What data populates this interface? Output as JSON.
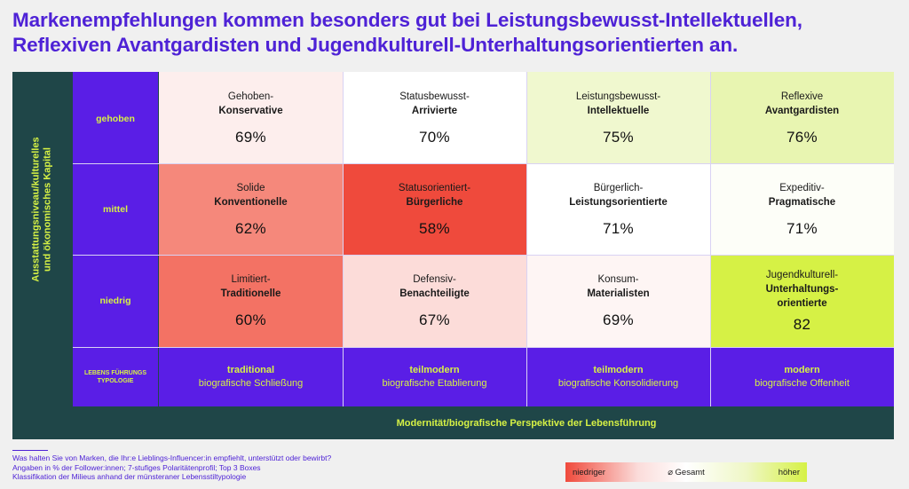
{
  "title": "Markenempfehlungen kommen besonders gut bei Leistungsbewusst-Intellektuellen, Reflexiven Avantgardisten und Jugendkulturell-Unterhaltungsorientierten an.",
  "y_axis_title": "Ausstattungsniveau/kulturelles und ökonomisches Kapital",
  "x_axis_title": "Modernität/biografische Perspektive der Lebensführung",
  "typology_label": "LEBENS FÜHRUNGS TYPOLOGIE",
  "levels": [
    "gehoben",
    "mittel",
    "niedrig"
  ],
  "typologies": [
    {
      "line1": "traditional",
      "line2": "biografische Schließung"
    },
    {
      "line1": "teilmodern",
      "line2": "biografische Etablierung"
    },
    {
      "line1": "teilmodern",
      "line2": "biografische Konsolidierung"
    },
    {
      "line1": "modern",
      "line2": "biografische Offenheit"
    }
  ],
  "chart_data": {
    "type": "heatmap",
    "title": "Markenempfehlungen kommen besonders gut bei Leistungsbewusst-Intellektuellen, Reflexiven Avantgardisten und Jugendkulturell-Unterhaltungsorientierten an.",
    "xlabel": "Modernität/biografische Perspektive der Lebensführung",
    "ylabel": "Ausstattungsniveau/kulturelles und ökonomisches Kapital",
    "rows": [
      "gehoben",
      "mittel",
      "niedrig"
    ],
    "columns": [
      "traditional",
      "teilmodern",
      "teilmodern",
      "modern"
    ],
    "unit": "%",
    "cells": [
      {
        "row": 0,
        "col": 0,
        "line1": "Gehoben-",
        "line2": "Konservative",
        "value_label": "69%",
        "value": 69,
        "color": "#fdeeed"
      },
      {
        "row": 0,
        "col": 1,
        "line1": "Statusbewusst-",
        "line2": "Arrivierte",
        "value_label": "70%",
        "value": 70,
        "color": "#ffffff"
      },
      {
        "row": 0,
        "col": 2,
        "line1": "Leistungsbewusst-",
        "line2": "Intellektuelle",
        "value_label": "75%",
        "value": 75,
        "color": "#f0f8cf"
      },
      {
        "row": 0,
        "col": 3,
        "line1": "Reflexive",
        "line2": "Avantgardisten",
        "value_label": "76%",
        "value": 76,
        "color": "#e8f5b1"
      },
      {
        "row": 1,
        "col": 0,
        "line1": "Solide",
        "line2": "Konventionelle",
        "value_label": "62%",
        "value": 62,
        "color": "#f5887b"
      },
      {
        "row": 1,
        "col": 1,
        "line1": "Statusorientiert-",
        "line2": "Bürgerliche",
        "value_label": "58%",
        "value": 58,
        "color": "#ef4a3c"
      },
      {
        "row": 1,
        "col": 2,
        "line1": "Bürgerlich-",
        "line2": "Leistungsorientierte",
        "value_label": "71%",
        "value": 71,
        "color": "#ffffff"
      },
      {
        "row": 1,
        "col": 3,
        "line1": "Expeditiv-",
        "line2": "Pragmatische",
        "value_label": "71%",
        "value": 71,
        "color": "#fdfef8"
      },
      {
        "row": 2,
        "col": 0,
        "line1": "Limitiert-",
        "line2": "Traditionelle",
        "value_label": "60%",
        "value": 60,
        "color": "#f37264"
      },
      {
        "row": 2,
        "col": 1,
        "line1": "Defensiv-",
        "line2": "Benachteiligte",
        "value_label": "67%",
        "value": 67,
        "color": "#fcdcd9"
      },
      {
        "row": 2,
        "col": 2,
        "line1": "Konsum-",
        "line2": "Materialisten",
        "value_label": "69%",
        "value": 69,
        "color": "#fef5f4"
      },
      {
        "row": 2,
        "col": 3,
        "line1": "Jugendkulturell-",
        "line2": "Unterhaltungs- orientierte",
        "value_label": "82",
        "value": 82,
        "color": "#d6f145"
      }
    ]
  },
  "notes": [
    "Was halten Sie von Marken, die Ihr:e Lieblings-Influencer:in empfiehlt, unterstützt oder bewirbt?",
    "Angaben in % der Follower:innen; 7-stufiges Polaritätenprofil; Top 3 Boxes",
    "Klassifikation der Milieus anhand der münsteraner Lebensstiltypologie"
  ],
  "legend": {
    "low": "niedriger",
    "mid": "⌀ Gesamt",
    "high": "höher"
  },
  "colors": {
    "accent": "#4e22d6",
    "purple": "#5a1ee6",
    "dark_teal": "#1f4648",
    "lime": "#d6f145",
    "red": "#ef4a3c"
  }
}
